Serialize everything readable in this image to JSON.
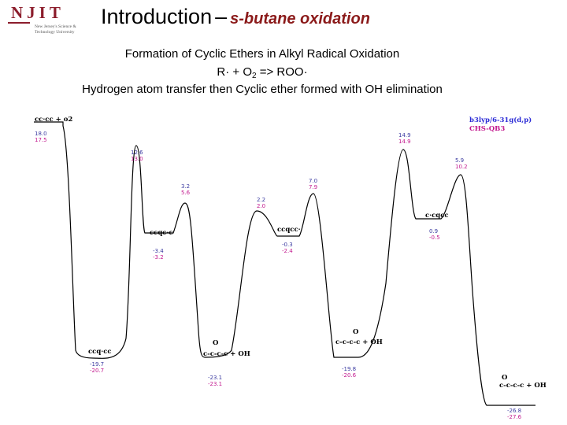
{
  "logo": {
    "letters": "NJIT",
    "line1": "New Jersey's Science &",
    "line2": "Technology University"
  },
  "header": {
    "title": "Introduction",
    "dash": "–",
    "subtitle": "s-butane oxidation"
  },
  "captions": {
    "line1": "Formation of Cyclic Ethers in Alkyl Radical Oxidation",
    "line2_pre": "R· + O",
    "line2_sub": "2",
    "line2_post": " => ROO·",
    "line3": "Hydrogen atom transfer then Cyclic ether formed with OH elimination"
  },
  "legend": {
    "method1": "b3lyp/6-31g(d,p)",
    "method2": "CHS-QB3"
  },
  "colors": {
    "curve": "#000000",
    "method1": "#3a3aa0",
    "method2": "#c2188e",
    "logo": "#8c1d2c"
  },
  "diagram": {
    "points": [
      {
        "label": "cc·cc + o2",
        "b3": "18.0",
        "cbs": "17.5"
      },
      {
        "label": "ccq·cc",
        "b3": "-19.7",
        "cbs": "-20.7"
      },
      {
        "label": "",
        "b3": "12.6",
        "cbs": "13.0"
      },
      {
        "label": "ccqc·c",
        "b3": "-3.4",
        "cbs": "-3.2"
      },
      {
        "label": "",
        "b3": "3.2",
        "cbs": "5.6"
      },
      {
        "label": "c-c-c-c + OH",
        "b3": "-23.1",
        "cbs": "-23.1"
      },
      {
        "label": "",
        "b3": "2.2",
        "cbs": "2.0"
      },
      {
        "label": "ccqcc·",
        "b3": "-0.3",
        "cbs": "-2.4"
      },
      {
        "label": "",
        "b3": "7.0",
        "cbs": "7.9"
      },
      {
        "label": "c-c-c-c + OH",
        "b3": "-19.8",
        "cbs": "-20.6"
      },
      {
        "label": "",
        "b3": "14.9",
        "cbs": "14.9"
      },
      {
        "label": "c·cqcc",
        "b3": "0.9",
        "cbs": "-0.5"
      },
      {
        "label": "",
        "b3": "5.9",
        "cbs": "10.2"
      },
      {
        "label": "c-c-c-c + OH",
        "b3": "-26.8",
        "cbs": "-27.6"
      }
    ]
  }
}
